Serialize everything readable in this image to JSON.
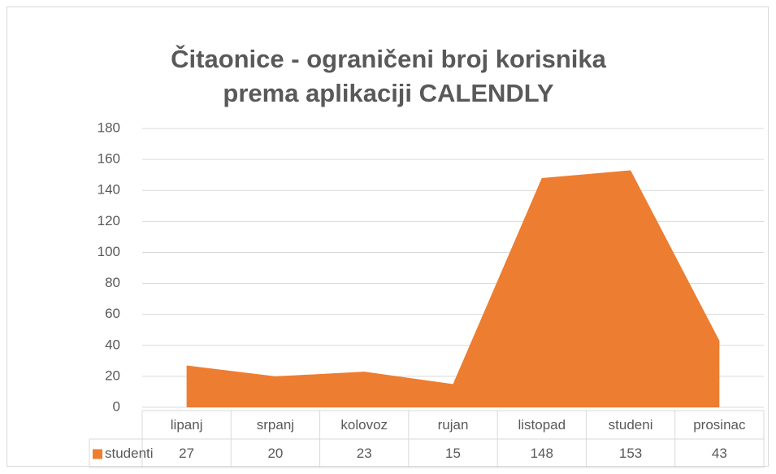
{
  "chart_data": {
    "type": "area",
    "title": "Čitaonice - ograničeni broj korisnika prema aplikaciji CALENDLY",
    "categories": [
      "lipanj",
      "srpanj",
      "kolovoz",
      "rujan",
      "listopad",
      "studeni",
      "prosinac"
    ],
    "series": [
      {
        "name": "studenti",
        "color": "#ed7d31",
        "values": [
          27,
          20,
          23,
          15,
          148,
          153,
          43
        ]
      }
    ],
    "ylim": [
      0,
      180
    ],
    "yticks": [
      0,
      20,
      40,
      60,
      80,
      100,
      120,
      140,
      160,
      180
    ],
    "grid": true
  }
}
